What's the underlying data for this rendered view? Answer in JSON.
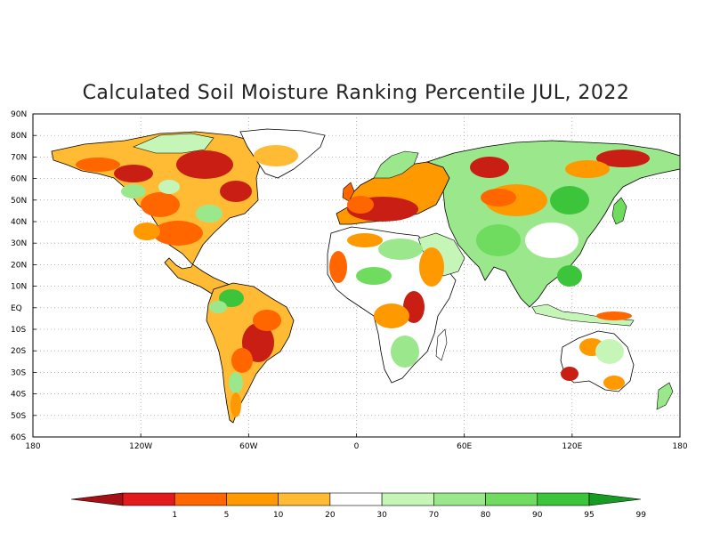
{
  "title": "Calculated Soil Moisture Ranking Percentile JUL, 2022",
  "lat_labels": [
    "90N",
    "80N",
    "70N",
    "60N",
    "50N",
    "40N",
    "30N",
    "20N",
    "10N",
    "EQ",
    "10S",
    "20S",
    "30S",
    "40S",
    "50S",
    "60S"
  ],
  "lon_labels": [
    "180",
    "120W",
    "60W",
    "0",
    "60E",
    "120E",
    "180"
  ],
  "colorbar": {
    "labels": [
      "1",
      "5",
      "10",
      "20",
      "30",
      "70",
      "80",
      "90",
      "95",
      "99"
    ],
    "colors": [
      "#a50f15",
      "#e31a1c",
      "#ff6600",
      "#ff9900",
      "#ffbb33",
      "#ffffff",
      "#c6f5b8",
      "#9be88c",
      "#6fdc5f",
      "#3cc43a",
      "#179b22"
    ]
  },
  "colors": {
    "very_dry": "#c81e14",
    "dry": "#ff6600",
    "moderately_dry": "#ff9900",
    "slightly_dry": "#ffbb33",
    "near_normal": "#ffffff",
    "slightly_wet": "#c6f5b8",
    "wet": "#9be88c",
    "very_wet": "#6fdc5f",
    "extremely_wet": "#3cc43a"
  }
}
